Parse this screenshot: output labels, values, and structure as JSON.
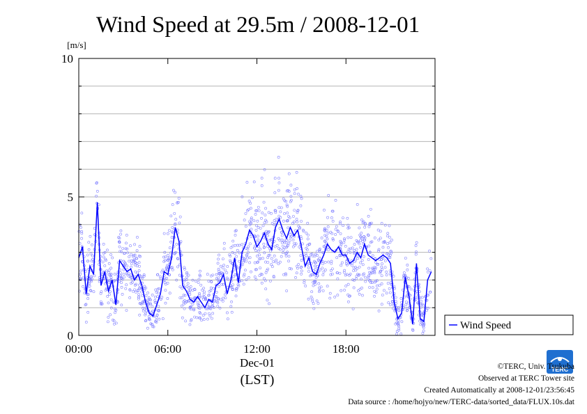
{
  "chart_data": {
    "type": "scatter",
    "title": "Wind Speed at 29.5m / 2008-12-01",
    "ylabel": "[m/s]",
    "ylim": [
      0,
      10
    ],
    "yticks": [
      0,
      5,
      10
    ],
    "xlim": [
      0,
      24
    ],
    "xticks": [
      {
        "value": 0,
        "label": "00:00"
      },
      {
        "value": 6,
        "label": "06:00"
      },
      {
        "value": 12,
        "label": "12:00"
      },
      {
        "value": 18,
        "label": "18:00"
      }
    ],
    "xdate": "Dec-01",
    "xlabel": "(LST)",
    "grid": true,
    "legend_position": "right",
    "series": [
      {
        "name": "Wind Speed",
        "type": "line",
        "color": "#0000ff",
        "x": [
          0.0,
          0.25,
          0.5,
          0.75,
          1.0,
          1.25,
          1.5,
          1.75,
          2.0,
          2.25,
          2.5,
          2.75,
          3.0,
          3.25,
          3.5,
          3.75,
          4.0,
          4.25,
          4.5,
          4.75,
          5.0,
          5.25,
          5.5,
          5.75,
          6.0,
          6.25,
          6.5,
          6.75,
          7.0,
          7.25,
          7.5,
          7.75,
          8.0,
          8.25,
          8.5,
          8.75,
          9.0,
          9.25,
          9.5,
          9.75,
          10.0,
          10.25,
          10.5,
          10.75,
          11.0,
          11.25,
          11.5,
          11.75,
          12.0,
          12.25,
          12.5,
          12.75,
          13.0,
          13.25,
          13.5,
          13.75,
          14.0,
          14.25,
          14.5,
          14.75,
          15.0,
          15.25,
          15.5,
          15.75,
          16.0,
          16.25,
          16.5,
          16.75,
          17.0,
          17.25,
          17.5,
          17.75,
          18.0,
          18.25,
          18.5,
          18.75,
          19.0,
          19.25,
          19.5,
          19.75,
          20.0,
          20.25,
          20.5,
          20.75,
          21.0,
          21.25,
          21.5,
          21.75,
          22.0,
          22.25,
          22.5,
          22.75,
          23.0,
          23.25,
          23.5,
          23.75
        ],
        "values": [
          2.8,
          3.2,
          1.5,
          2.5,
          2.2,
          4.8,
          1.8,
          2.3,
          1.6,
          2.0,
          1.1,
          2.7,
          2.5,
          2.3,
          2.4,
          2.0,
          2.2,
          1.8,
          1.2,
          0.8,
          0.7,
          1.1,
          1.5,
          2.3,
          2.2,
          2.8,
          3.9,
          3.4,
          1.8,
          1.6,
          1.3,
          1.2,
          1.4,
          1.2,
          1.0,
          1.3,
          1.2,
          1.8,
          1.9,
          2.2,
          1.5,
          2.0,
          2.8,
          1.9,
          3.0,
          3.3,
          3.8,
          3.6,
          3.2,
          3.4,
          3.7,
          3.3,
          3.1,
          3.9,
          4.2,
          3.8,
          3.5,
          3.9,
          3.6,
          3.8,
          3.2,
          2.5,
          2.8,
          2.3,
          2.2,
          2.6,
          2.9,
          3.3,
          3.1,
          3.0,
          3.2,
          2.9,
          2.9,
          2.6,
          2.7,
          3.0,
          2.8,
          3.3,
          2.9,
          2.8,
          2.7,
          2.8,
          2.9,
          2.8,
          2.6,
          1.2,
          0.6,
          0.8,
          2.1,
          1.4,
          0.4,
          2.6,
          0.6,
          0.5,
          2.0,
          2.3
        ]
      }
    ],
    "scatter_points": {
      "description_series": "10-second samples",
      "color": "#8080ff"
    }
  },
  "legend": {
    "label": "Wind Speed"
  },
  "footer": {
    "copyright": "©TERC, Univ. Tsukuba",
    "observed": "Observed at TERC Tower site",
    "created": "Created Automatically at 2008-12-01/23:56:45",
    "source": "Data source : /home/hojyo/new/TERC-data/sorted_data/FLUX.10s.dat"
  },
  "logo": {
    "text": "TERC"
  }
}
